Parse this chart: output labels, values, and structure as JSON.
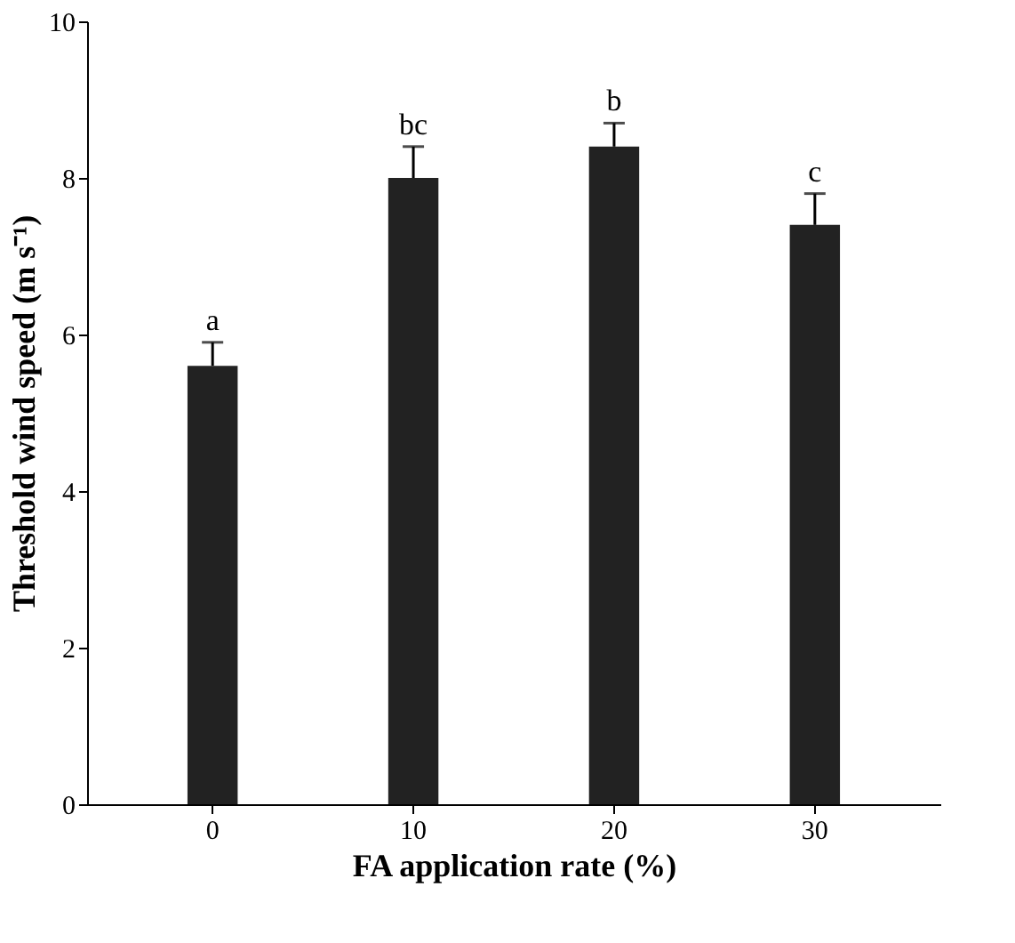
{
  "chart_data": {
    "type": "bar",
    "xlabel": "FA application rate (%)",
    "ylabel": "Threshold wind speed (m s⁻¹)",
    "categories": [
      "0",
      "10",
      "20",
      "30"
    ],
    "values": [
      5.6,
      8.0,
      8.4,
      7.4
    ],
    "errors": [
      0.3,
      0.4,
      0.3,
      0.4
    ],
    "color": "#222222",
    "ylim": [
      0,
      10
    ],
    "yticks": [
      0,
      2,
      4,
      6,
      8,
      10
    ],
    "grid": false,
    "annotations": [
      {
        "text": "a",
        "x": "0",
        "y": 5.9
      },
      {
        "text": "bc",
        "x": "10",
        "y": 8.4
      },
      {
        "text": "b",
        "x": "20",
        "y": 8.7
      },
      {
        "text": "c",
        "x": "30",
        "y": 7.8
      }
    ]
  }
}
